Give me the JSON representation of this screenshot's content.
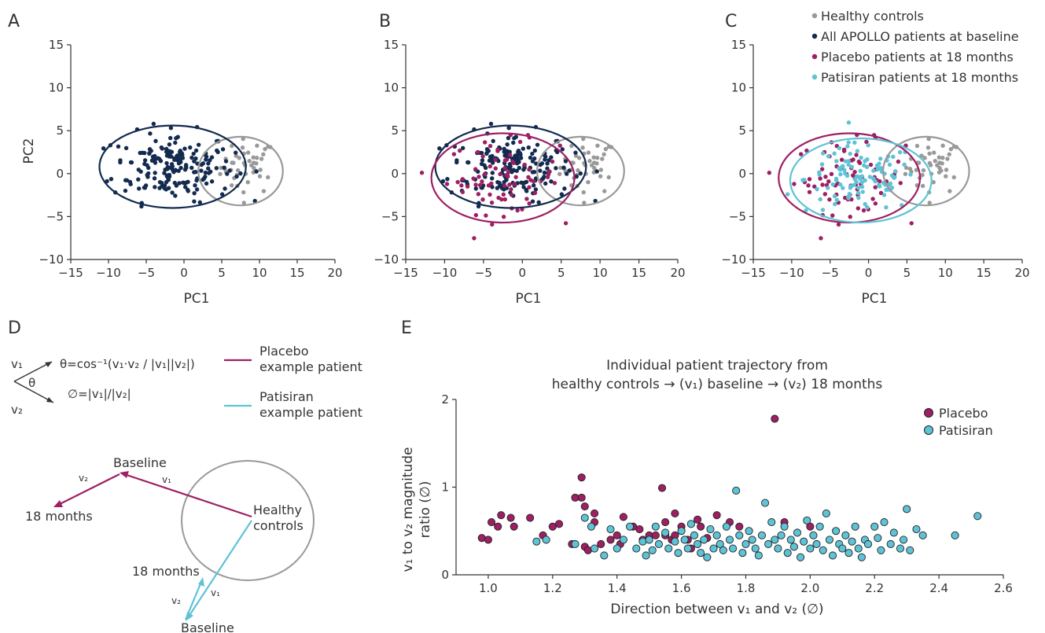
{
  "colors": {
    "healthy": "#999999",
    "baseline": "#132b4f",
    "placebo": "#9e1f63",
    "patisiran": "#5ec3d6",
    "axis": "#333333"
  },
  "legend_abc": [
    {
      "key": "healthy",
      "label": "Healthy controls"
    },
    {
      "key": "baseline",
      "label": "All APOLLO patients at baseline"
    },
    {
      "key": "placebo",
      "label": "Placebo patients at 18 months"
    },
    {
      "key": "patisiran",
      "label": "Patisiran patients at 18 months"
    }
  ],
  "panel_d": {
    "letter": "D",
    "equation_theta": "θ=cos⁻¹(v₁·v₂ / |v₁||v₂|)",
    "equation_ratio": "∅=|v₁|/|v₂|",
    "v1_label": "v₁",
    "v2_label": "v₂",
    "theta_label": "θ",
    "legend": [
      {
        "key": "placebo",
        "line1": "Placebo",
        "line2": "example patient"
      },
      {
        "key": "patisiran",
        "line1": "Patisiran",
        "line2": "example patient"
      }
    ],
    "labels": {
      "baseline_top": "Baseline",
      "months_left": "18 months",
      "healthy_line1": "Healthy",
      "healthy_line2": "controls",
      "months_bottom": "18 months",
      "baseline_bottom": "Baseline",
      "pv1": "v₁",
      "pv2": "v₂",
      "tv1": "v₁",
      "tv2": "v₂"
    }
  },
  "chart_data": [
    {
      "panel": "A",
      "type": "scatter",
      "xlabel": "PC1",
      "ylabel": "PC2",
      "xlim": [
        -15,
        20
      ],
      "ylim": [
        -10,
        15
      ],
      "xticks": [
        -15,
        -10,
        -5,
        0,
        5,
        10,
        15,
        20
      ],
      "yticks": [
        -10,
        -5,
        0,
        5,
        10,
        15
      ],
      "groups": [
        "healthy",
        "baseline"
      ],
      "ellipses": [
        {
          "group": "healthy",
          "cx": 7.5,
          "cy": 0.3,
          "rx": 5.6,
          "ry": 4.0
        },
        {
          "group": "baseline",
          "cx": -1.5,
          "cy": 0.8,
          "rx": 9.7,
          "ry": 4.8
        }
      ]
    },
    {
      "panel": "B",
      "type": "scatter",
      "xlabel": "PC1",
      "ylabel": "",
      "xlim": [
        -15,
        20
      ],
      "ylim": [
        -10,
        15
      ],
      "xticks": [
        -15,
        -10,
        -5,
        0,
        5,
        10,
        15,
        20
      ],
      "yticks": [
        -10,
        -5,
        0,
        5,
        10,
        15
      ],
      "groups": [
        "healthy",
        "baseline",
        "placebo"
      ],
      "ellipses": [
        {
          "group": "healthy",
          "cx": 7.5,
          "cy": 0.3,
          "rx": 5.6,
          "ry": 4.0
        },
        {
          "group": "baseline",
          "cx": -1.5,
          "cy": 0.8,
          "rx": 9.7,
          "ry": 4.8
        },
        {
          "group": "placebo",
          "cx": -2.5,
          "cy": -0.5,
          "rx": 9.2,
          "ry": 5.2
        }
      ]
    },
    {
      "panel": "C",
      "type": "scatter",
      "xlabel": "PC1",
      "ylabel": "",
      "xlim": [
        -15,
        20
      ],
      "ylim": [
        -10,
        15
      ],
      "xticks": [
        -15,
        -10,
        -5,
        0,
        5,
        10,
        15,
        20
      ],
      "yticks": [
        -10,
        -5,
        0,
        5,
        10,
        15
      ],
      "groups": [
        "healthy",
        "placebo",
        "patisiran"
      ],
      "ellipses": [
        {
          "group": "healthy",
          "cx": 7.5,
          "cy": 0.3,
          "rx": 5.6,
          "ry": 4.0
        },
        {
          "group": "placebo",
          "cx": -2.5,
          "cy": -0.5,
          "rx": 9.2,
          "ry": 5.2
        },
        {
          "group": "patisiran",
          "cx": -1.0,
          "cy": -0.8,
          "rx": 9.2,
          "ry": 4.9
        }
      ]
    },
    {
      "panel": "E",
      "type": "scatter",
      "title_line1": "Individual patient trajectory from",
      "title_line2": "healthy controls → (v₁) baseline → (v₂) 18 months",
      "xlabel": "Direction between v₁ and v₂ (∅)",
      "ylabel_line1": "v₁ to v₂ magnitude",
      "ylabel_line2": "ratio (∅)",
      "xlim": [
        0.9,
        2.6
      ],
      "ylim": [
        0,
        2
      ],
      "xticks": [
        1.0,
        1.2,
        1.4,
        1.6,
        1.8,
        2.0,
        2.2,
        2.4,
        2.6
      ],
      "yticks": [
        0,
        1,
        2
      ],
      "legend": [
        {
          "key": "placebo",
          "label": "Placebo"
        },
        {
          "key": "patisiran",
          "label": "Patisiran"
        }
      ],
      "series": [
        {
          "name": "Placebo",
          "key": "placebo",
          "points": [
            [
              0.98,
              0.42
            ],
            [
              1.0,
              0.4
            ],
            [
              1.01,
              0.6
            ],
            [
              1.03,
              0.55
            ],
            [
              1.04,
              0.68
            ],
            [
              1.07,
              0.65
            ],
            [
              1.08,
              0.55
            ],
            [
              1.13,
              0.65
            ],
            [
              1.17,
              0.45
            ],
            [
              1.2,
              0.55
            ],
            [
              1.22,
              0.58
            ],
            [
              1.26,
              0.35
            ],
            [
              1.27,
              0.88
            ],
            [
              1.29,
              0.88
            ],
            [
              1.29,
              1.11
            ],
            [
              1.3,
              0.78
            ],
            [
              1.3,
              0.32
            ],
            [
              1.31,
              0.28
            ],
            [
              1.33,
              0.7
            ],
            [
              1.33,
              0.6
            ],
            [
              1.35,
              0.35
            ],
            [
              1.38,
              0.4
            ],
            [
              1.4,
              0.45
            ],
            [
              1.42,
              0.66
            ],
            [
              1.41,
              0.35
            ],
            [
              1.45,
              0.55
            ],
            [
              1.47,
              0.52
            ],
            [
              1.48,
              0.4
            ],
            [
              1.5,
              0.45
            ],
            [
              1.52,
              0.45
            ],
            [
              1.54,
              0.99
            ],
            [
              1.55,
              0.6
            ],
            [
              1.55,
              0.45
            ],
            [
              1.57,
              0.4
            ],
            [
              1.58,
              0.7
            ],
            [
              1.58,
              0.45
            ],
            [
              1.6,
              0.55
            ],
            [
              1.62,
              0.4
            ],
            [
              1.63,
              0.3
            ],
            [
              1.65,
              0.63
            ],
            [
              1.66,
              0.55
            ],
            [
              1.68,
              0.42
            ],
            [
              1.71,
              0.68
            ],
            [
              1.75,
              0.6
            ],
            [
              1.78,
              0.55
            ],
            [
              1.89,
              1.78
            ],
            [
              1.92,
              0.6
            ],
            [
              2.0,
              0.55
            ]
          ]
        },
        {
          "name": "Patisiran",
          "key": "patisiran",
          "points": [
            [
              1.15,
              0.38
            ],
            [
              1.18,
              0.4
            ],
            [
              1.27,
              0.35
            ],
            [
              1.3,
              0.65
            ],
            [
              1.32,
              0.55
            ],
            [
              1.33,
              0.3
            ],
            [
              1.36,
              0.22
            ],
            [
              1.38,
              0.52
            ],
            [
              1.4,
              0.3
            ],
            [
              1.42,
              0.4
            ],
            [
              1.44,
              0.55
            ],
            [
              1.46,
              0.3
            ],
            [
              1.48,
              0.38
            ],
            [
              1.49,
              0.22
            ],
            [
              1.5,
              0.4
            ],
            [
              1.51,
              0.28
            ],
            [
              1.52,
              0.55
            ],
            [
              1.53,
              0.35
            ],
            [
              1.55,
              0.48
            ],
            [
              1.56,
              0.3
            ],
            [
              1.58,
              0.38
            ],
            [
              1.59,
              0.25
            ],
            [
              1.6,
              0.5
            ],
            [
              1.61,
              0.4
            ],
            [
              1.62,
              0.3
            ],
            [
              1.63,
              0.58
            ],
            [
              1.64,
              0.45
            ],
            [
              1.65,
              0.35
            ],
            [
              1.66,
              0.25
            ],
            [
              1.67,
              0.4
            ],
            [
              1.68,
              0.2
            ],
            [
              1.69,
              0.52
            ],
            [
              1.7,
              0.3
            ],
            [
              1.71,
              0.45
            ],
            [
              1.72,
              0.35
            ],
            [
              1.73,
              0.28
            ],
            [
              1.74,
              0.55
            ],
            [
              1.75,
              0.4
            ],
            [
              1.76,
              0.3
            ],
            [
              1.77,
              0.96
            ],
            [
              1.78,
              0.45
            ],
            [
              1.79,
              0.25
            ],
            [
              1.8,
              0.35
            ],
            [
              1.81,
              0.5
            ],
            [
              1.82,
              0.4
            ],
            [
              1.83,
              0.3
            ],
            [
              1.84,
              0.22
            ],
            [
              1.85,
              0.45
            ],
            [
              1.86,
              0.82
            ],
            [
              1.87,
              0.35
            ],
            [
              1.88,
              0.6
            ],
            [
              1.89,
              0.4
            ],
            [
              1.9,
              0.3
            ],
            [
              1.91,
              0.45
            ],
            [
              1.92,
              0.55
            ],
            [
              1.93,
              0.25
            ],
            [
              1.94,
              0.4
            ],
            [
              1.95,
              0.32
            ],
            [
              1.96,
              0.48
            ],
            [
              1.97,
              0.2
            ],
            [
              1.98,
              0.38
            ],
            [
              1.99,
              0.62
            ],
            [
              2.0,
              0.3
            ],
            [
              2.01,
              0.45
            ],
            [
              2.02,
              0.35
            ],
            [
              2.03,
              0.55
            ],
            [
              2.04,
              0.28
            ],
            [
              2.05,
              0.7
            ],
            [
              2.06,
              0.4
            ],
            [
              2.07,
              0.22
            ],
            [
              2.08,
              0.5
            ],
            [
              2.09,
              0.35
            ],
            [
              2.1,
              0.3
            ],
            [
              2.11,
              0.45
            ],
            [
              2.12,
              0.25
            ],
            [
              2.13,
              0.38
            ],
            [
              2.14,
              0.55
            ],
            [
              2.15,
              0.3
            ],
            [
              2.16,
              0.2
            ],
            [
              2.17,
              0.4
            ],
            [
              2.18,
              0.35
            ],
            [
              2.2,
              0.55
            ],
            [
              2.21,
              0.42
            ],
            [
              2.22,
              0.28
            ],
            [
              2.23,
              0.6
            ],
            [
              2.25,
              0.35
            ],
            [
              2.26,
              0.48
            ],
            [
              2.28,
              0.3
            ],
            [
              2.29,
              0.4
            ],
            [
              2.3,
              0.75
            ],
            [
              2.31,
              0.28
            ],
            [
              2.33,
              0.52
            ],
            [
              2.35,
              0.45
            ],
            [
              2.45,
              0.45
            ],
            [
              2.52,
              0.67
            ]
          ]
        }
      ]
    }
  ]
}
